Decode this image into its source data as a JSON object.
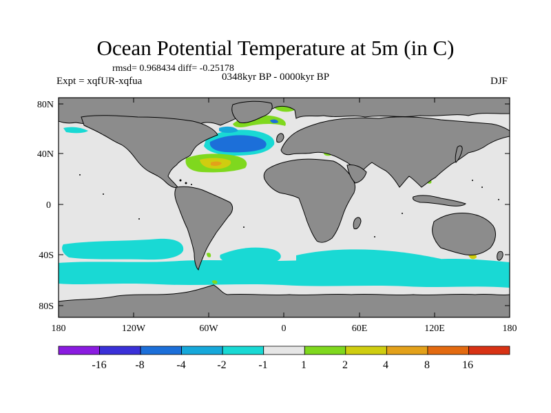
{
  "header": {
    "title": "Ocean Potential Temperature at 5m (in C)",
    "stats": "rmsd= 0.968434 diff= -0.25178",
    "expt": "Expt = xqfUR-xqfua",
    "period": "0348kyr BP - 0000kyr BP",
    "season": "DJF"
  },
  "axes": {
    "y_labels": [
      "80N",
      "40N",
      "0",
      "40S",
      "80S"
    ],
    "x_labels": [
      "180",
      "120W",
      "60W",
      "0",
      "60E",
      "120E",
      "180"
    ]
  },
  "colorbar": {
    "labels": [
      "-16",
      "-8",
      "-4",
      "-2",
      "-1",
      "1",
      "2",
      "4",
      "8",
      "16"
    ],
    "colors": [
      "#8a1be0",
      "#3a30d8",
      "#1c6fd9",
      "#16a8da",
      "#19d9d4",
      "#e6e6e6",
      "#7fd81e",
      "#cfcd10",
      "#e3a11a",
      "#e36a10",
      "#d83214"
    ]
  },
  "colors": {
    "land": "#8c8c8c",
    "ocean_neutral": "#e6e6e6",
    "coast": "#000000"
  }
}
